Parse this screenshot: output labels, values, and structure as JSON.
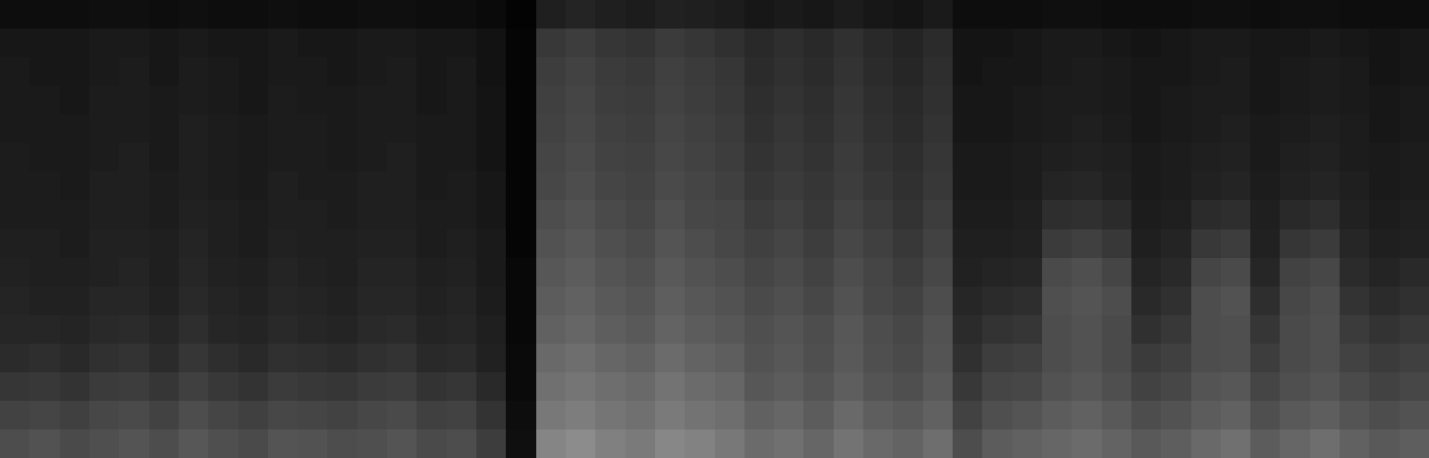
{
  "chart_data": {
    "type": "heatmap",
    "tick_labels": false,
    "color": "#ffffff",
    "zlim": [
      0,
      100
    ],
    "z": [
      [
        30,
        32,
        29,
        31,
        33,
        30,
        34,
        31,
        29,
        33,
        32,
        30,
        31,
        33,
        29,
        30,
        24,
        6,
        52,
        55,
        50,
        48,
        53,
        51,
        47,
        42,
        44,
        40,
        45,
        41,
        39,
        43,
        30,
        36,
        38,
        40,
        42,
        39,
        35,
        37,
        41,
        44,
        36,
        40,
        43,
        38,
        35,
        37
      ],
      [
        26,
        27,
        25,
        28,
        29,
        26,
        30,
        27,
        25,
        28,
        27,
        26,
        28,
        29,
        25,
        26,
        20,
        5,
        47,
        49,
        46,
        44,
        48,
        45,
        43,
        38,
        40,
        36,
        41,
        37,
        35,
        38,
        26,
        31,
        33,
        36,
        38,
        35,
        30,
        32,
        36,
        38,
        31,
        35,
        37,
        33,
        30,
        32
      ],
      [
        21,
        22,
        20,
        23,
        24,
        21,
        25,
        22,
        20,
        23,
        22,
        21,
        23,
        24,
        20,
        21,
        16,
        4,
        44,
        46,
        43,
        41,
        45,
        42,
        40,
        34,
        36,
        33,
        37,
        33,
        31,
        35,
        22,
        27,
        28,
        32,
        34,
        31,
        26,
        28,
        33,
        34,
        27,
        31,
        33,
        29,
        26,
        28
      ],
      [
        17,
        18,
        16,
        19,
        20,
        17,
        21,
        18,
        16,
        19,
        18,
        17,
        19,
        20,
        16,
        17,
        13,
        4,
        41,
        43,
        40,
        38,
        42,
        39,
        37,
        32,
        34,
        31,
        35,
        31,
        29,
        33,
        19,
        24,
        25,
        30,
        32,
        29,
        23,
        25,
        30,
        31,
        24,
        29,
        31,
        26,
        23,
        25
      ],
      [
        15,
        15,
        14,
        16,
        17,
        15,
        18,
        15,
        14,
        16,
        15,
        14,
        16,
        17,
        14,
        15,
        12,
        3,
        38,
        40,
        37,
        35,
        39,
        36,
        34,
        31,
        33,
        30,
        34,
        30,
        28,
        32,
        17,
        20,
        21,
        30,
        32,
        29,
        19,
        22,
        30,
        31,
        21,
        29,
        31,
        23,
        20,
        22
      ],
      [
        14,
        13,
        13,
        15,
        15,
        13,
        16,
        14,
        13,
        15,
        14,
        13,
        15,
        15,
        13,
        14,
        11,
        3,
        36,
        38,
        35,
        33,
        37,
        34,
        32,
        29,
        31,
        28,
        32,
        28,
        26,
        30,
        15,
        17,
        18,
        31,
        33,
        30,
        16,
        19,
        30,
        32,
        18,
        28,
        30,
        20,
        17,
        19
      ],
      [
        13,
        12,
        12,
        13,
        14,
        12,
        15,
        13,
        12,
        14,
        13,
        12,
        14,
        14,
        12,
        13,
        10,
        3,
        34,
        36,
        33,
        31,
        35,
        32,
        30,
        27,
        29,
        26,
        30,
        27,
        24,
        28,
        13,
        14,
        15,
        29,
        31,
        27,
        14,
        16,
        27,
        29,
        15,
        26,
        28,
        17,
        14,
        16
      ],
      [
        12,
        12,
        11,
        13,
        13,
        12,
        14,
        12,
        11,
        13,
        12,
        12,
        13,
        13,
        11,
        12,
        10,
        2,
        32,
        34,
        31,
        29,
        33,
        30,
        28,
        25,
        27,
        24,
        28,
        25,
        22,
        26,
        12,
        12,
        13,
        23,
        25,
        22,
        12,
        14,
        22,
        24,
        13,
        21,
        23,
        15,
        12,
        13
      ],
      [
        11,
        11,
        11,
        12,
        12,
        11,
        13,
        12,
        11,
        12,
        12,
        11,
        12,
        12,
        11,
        11,
        9,
        2,
        30,
        32,
        29,
        27,
        31,
        28,
        27,
        23,
        25,
        22,
        26,
        23,
        20,
        24,
        11,
        11,
        12,
        18,
        19,
        17,
        11,
        12,
        17,
        18,
        12,
        16,
        18,
        13,
        11,
        12
      ],
      [
        11,
        11,
        10,
        12,
        12,
        11,
        12,
        11,
        10,
        12,
        11,
        11,
        12,
        12,
        10,
        11,
        9,
        2,
        28,
        30,
        27,
        26,
        29,
        27,
        25,
        21,
        23,
        21,
        24,
        21,
        19,
        22,
        10,
        10,
        11,
        14,
        15,
        13,
        10,
        11,
        13,
        14,
        11,
        13,
        14,
        12,
        10,
        11
      ],
      [
        11,
        10,
        10,
        11,
        12,
        10,
        12,
        11,
        10,
        11,
        11,
        10,
        11,
        12,
        10,
        10,
        8,
        2,
        27,
        29,
        26,
        25,
        28,
        26,
        24,
        20,
        22,
        20,
        23,
        20,
        18,
        21,
        10,
        10,
        11,
        12,
        13,
        12,
        10,
        11,
        12,
        13,
        10,
        12,
        13,
        11,
        10,
        11
      ],
      [
        10,
        10,
        10,
        11,
        11,
        10,
        12,
        11,
        10,
        11,
        11,
        10,
        11,
        11,
        10,
        10,
        8,
        2,
        26,
        28,
        25,
        24,
        27,
        25,
        23,
        19,
        21,
        19,
        22,
        19,
        17,
        20,
        9,
        9,
        10,
        11,
        12,
        11,
        9,
        10,
        11,
        12,
        10,
        11,
        12,
        11,
        9,
        10
      ],
      [
        10,
        10,
        9,
        11,
        11,
        10,
        11,
        10,
        9,
        11,
        10,
        10,
        11,
        11,
        9,
        10,
        8,
        2,
        25,
        27,
        24,
        23,
        26,
        24,
        22,
        18,
        20,
        18,
        21,
        18,
        16,
        19,
        9,
        9,
        10,
        11,
        11,
        10,
        9,
        10,
        11,
        11,
        9,
        10,
        11,
        10,
        9,
        10
      ],
      [
        10,
        9,
        9,
        10,
        11,
        9,
        11,
        10,
        9,
        10,
        10,
        9,
        10,
        11,
        9,
        10,
        7,
        2,
        24,
        26,
        23,
        22,
        25,
        23,
        21,
        17,
        19,
        17,
        20,
        17,
        15,
        18,
        8,
        9,
        9,
        10,
        11,
        10,
        9,
        9,
        10,
        11,
        9,
        10,
        11,
        10,
        8,
        9
      ],
      [
        9,
        9,
        9,
        10,
        10,
        9,
        10,
        9,
        9,
        10,
        9,
        9,
        10,
        10,
        9,
        9,
        7,
        2,
        22,
        24,
        21,
        20,
        23,
        21,
        19,
        16,
        18,
        16,
        19,
        16,
        14,
        17,
        8,
        8,
        9,
        10,
        10,
        9,
        8,
        9,
        10,
        10,
        9,
        9,
        10,
        9,
        8,
        9
      ],
      [
        5,
        5,
        5,
        6,
        6,
        5,
        6,
        5,
        5,
        6,
        5,
        5,
        6,
        6,
        5,
        5,
        4,
        1,
        12,
        14,
        12,
        11,
        13,
        12,
        11,
        9,
        10,
        9,
        11,
        9,
        8,
        10,
        5,
        5,
        5,
        6,
        6,
        5,
        5,
        5,
        6,
        6,
        5,
        6,
        6,
        5,
        5,
        5
      ]
    ]
  }
}
